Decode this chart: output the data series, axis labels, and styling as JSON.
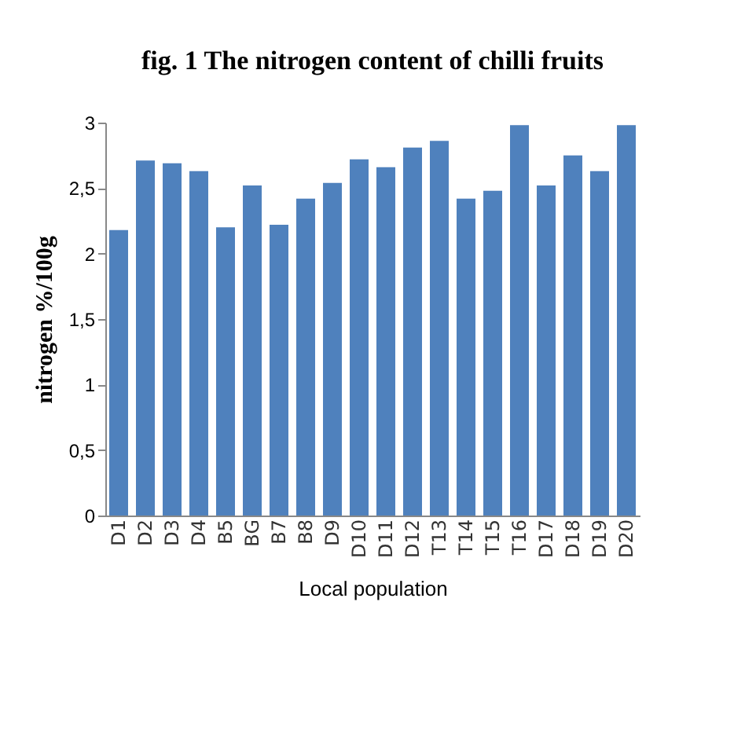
{
  "chart_data": {
    "type": "bar",
    "title": "fig. 1 The nitrogen content of chilli fruits",
    "xlabel": "Local population",
    "ylabel": "nitrogen %/100g",
    "categories": [
      "D1",
      "D2",
      "D3",
      "D4",
      "B5",
      "BG",
      "B7",
      "B8",
      "D9",
      "D10",
      "D11",
      "D12",
      "T13",
      "T14",
      "T15",
      "T16",
      "D17",
      "D18",
      "D19",
      "D20"
    ],
    "values": [
      2.18,
      2.71,
      2.69,
      2.63,
      2.2,
      2.52,
      2.22,
      2.42,
      2.54,
      2.72,
      2.66,
      2.81,
      2.86,
      2.42,
      2.48,
      2.98,
      2.52,
      2.75,
      2.63,
      2.98
    ],
    "color": "#4f81bd",
    "ylim": [
      0,
      3
    ],
    "yticks": [
      0,
      {
        "value": 0.5,
        "label": "0,5"
      },
      1,
      {
        "value": 1.5,
        "label": "1,5"
      },
      2,
      {
        "value": 2.5,
        "label": "2,5"
      },
      3
    ],
    "grid": false
  }
}
